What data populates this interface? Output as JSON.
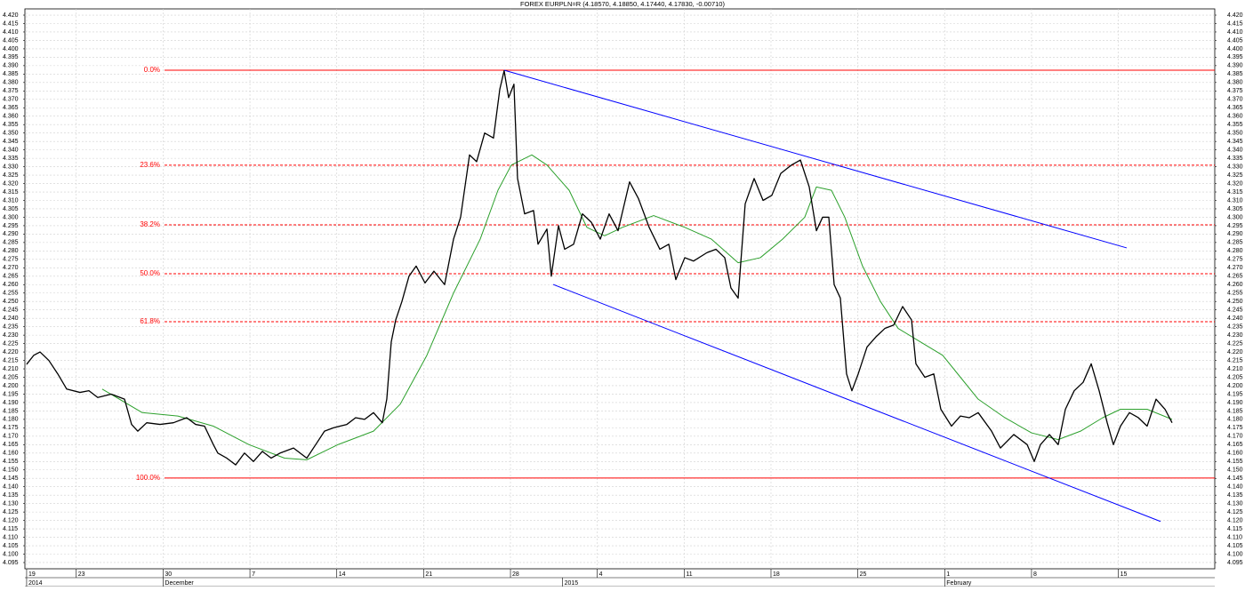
{
  "chart_data": {
    "type": "line",
    "title": "FOREX EURPLN=R (4.18570, 4.18850, 4.17440, 4.17830, -0.00710)",
    "xlim": [
      -0.14,
      95.77
    ],
    "ylim": [
      4.0913,
      4.4237
    ],
    "grid": true,
    "xticks": [
      {
        "value": 0,
        "label": "19"
      },
      {
        "value": 4,
        "label": "23"
      },
      {
        "value": 11,
        "label": "30"
      },
      {
        "value": 18,
        "label": "7"
      },
      {
        "value": 25,
        "label": "14"
      },
      {
        "value": 32,
        "label": "21"
      },
      {
        "value": 39,
        "label": "28"
      },
      {
        "value": 46,
        "label": "4"
      },
      {
        "value": 53,
        "label": "11"
      },
      {
        "value": 60,
        "label": "18"
      },
      {
        "value": 67,
        "label": "25"
      },
      {
        "value": 74,
        "label": "1"
      },
      {
        "value": 81,
        "label": "8"
      },
      {
        "value": 88,
        "label": "15"
      }
    ],
    "xticks_secondary": [
      {
        "value": 0,
        "label": "2014"
      },
      {
        "value": 11,
        "label": "December"
      },
      {
        "value": 43.2,
        "label": "2015"
      },
      {
        "value": 74,
        "label": "February"
      }
    ],
    "yticks": [
      {
        "value": 4.095,
        "label": "4.095"
      },
      {
        "value": 4.1,
        "label": "4.100"
      },
      {
        "value": 4.105,
        "label": "4.105"
      },
      {
        "value": 4.11,
        "label": "4.110"
      },
      {
        "value": 4.115,
        "label": "4.115"
      },
      {
        "value": 4.12,
        "label": "4.120"
      },
      {
        "value": 4.125,
        "label": "4.125"
      },
      {
        "value": 4.13,
        "label": "4.130"
      },
      {
        "value": 4.135,
        "label": "4.135"
      },
      {
        "value": 4.14,
        "label": "4.140"
      },
      {
        "value": 4.145,
        "label": "4.145"
      },
      {
        "value": 4.15,
        "label": "4.150"
      },
      {
        "value": 4.155,
        "label": "4.155"
      },
      {
        "value": 4.16,
        "label": "4.160"
      },
      {
        "value": 4.165,
        "label": "4.165"
      },
      {
        "value": 4.17,
        "label": "4.170"
      },
      {
        "value": 4.175,
        "label": "4.175"
      },
      {
        "value": 4.18,
        "label": "4.180"
      },
      {
        "value": 4.185,
        "label": "4.185"
      },
      {
        "value": 4.19,
        "label": "4.190"
      },
      {
        "value": 4.195,
        "label": "4.195"
      },
      {
        "value": 4.2,
        "label": "4.200"
      },
      {
        "value": 4.205,
        "label": "4.205"
      },
      {
        "value": 4.21,
        "label": "4.210"
      },
      {
        "value": 4.215,
        "label": "4.215"
      },
      {
        "value": 4.22,
        "label": "4.220"
      },
      {
        "value": 4.225,
        "label": "4.225"
      },
      {
        "value": 4.23,
        "label": "4.230"
      },
      {
        "value": 4.235,
        "label": "4.235"
      },
      {
        "value": 4.24,
        "label": "4.240"
      },
      {
        "value": 4.245,
        "label": "4.245"
      },
      {
        "value": 4.25,
        "label": "4.250"
      },
      {
        "value": 4.255,
        "label": "4.255"
      },
      {
        "value": 4.26,
        "label": "4.260"
      },
      {
        "value": 4.265,
        "label": "4.265"
      },
      {
        "value": 4.27,
        "label": "4.270"
      },
      {
        "value": 4.275,
        "label": "4.275"
      },
      {
        "value": 4.28,
        "label": "4.280"
      },
      {
        "value": 4.285,
        "label": "4.285"
      },
      {
        "value": 4.29,
        "label": "4.290"
      },
      {
        "value": 4.295,
        "label": "4.295"
      },
      {
        "value": 4.3,
        "label": "4.300"
      },
      {
        "value": 4.305,
        "label": "4.305"
      },
      {
        "value": 4.31,
        "label": "4.310"
      },
      {
        "value": 4.315,
        "label": "4.315"
      },
      {
        "value": 4.32,
        "label": "4.320"
      },
      {
        "value": 4.325,
        "label": "4.325"
      },
      {
        "value": 4.33,
        "label": "4.330"
      },
      {
        "value": 4.335,
        "label": "4.335"
      },
      {
        "value": 4.34,
        "label": "4.340"
      },
      {
        "value": 4.345,
        "label": "4.345"
      },
      {
        "value": 4.35,
        "label": "4.350"
      },
      {
        "value": 4.355,
        "label": "4.355"
      },
      {
        "value": 4.36,
        "label": "4.360"
      },
      {
        "value": 4.365,
        "label": "4.365"
      },
      {
        "value": 4.37,
        "label": "4.370"
      },
      {
        "value": 4.375,
        "label": "4.375"
      },
      {
        "value": 4.38,
        "label": "4.380"
      },
      {
        "value": 4.385,
        "label": "4.385"
      },
      {
        "value": 4.39,
        "label": "4.390"
      },
      {
        "value": 4.395,
        "label": "4.395"
      },
      {
        "value": 4.4,
        "label": "4.400"
      },
      {
        "value": 4.405,
        "label": "4.405"
      },
      {
        "value": 4.41,
        "label": "4.410"
      },
      {
        "value": 4.415,
        "label": "4.415"
      },
      {
        "value": 4.42,
        "label": "4.420"
      }
    ],
    "series": [
      {
        "color": "#000000",
        "x": [
          0,
          0.57,
          1.08,
          1.79,
          2.51,
          3.23,
          4.3,
          5.02,
          5.73,
          6.81,
          7.89,
          8.46,
          8.96,
          9.68,
          10.75,
          11.83,
          12.9,
          13.62,
          14.34,
          15.05,
          15.41,
          16.13,
          16.85,
          17.56,
          18.28,
          19.0,
          19.71,
          20.43,
          21.51,
          22.58,
          23.3,
          24.01,
          24.73,
          25.81,
          26.52,
          27.24,
          27.96,
          28.67,
          29.03,
          29.39,
          29.75,
          30.25,
          30.82,
          31.4,
          32.11,
          32.83,
          33.69,
          34.41,
          34.98,
          35.7,
          36.27,
          36.92,
          37.63,
          38.14,
          38.49,
          38.85,
          39.28,
          39.57,
          40.14,
          40.86,
          41.22,
          41.94,
          42.29,
          42.87,
          43.37,
          44.09,
          44.8,
          45.52,
          46.24,
          46.95,
          47.67,
          48.6,
          49.32,
          50.18,
          51.04,
          51.76,
          52.33,
          53.05,
          53.76,
          54.84,
          55.56,
          56.27,
          56.77,
          57.35,
          57.92,
          58.64,
          59.36,
          60.07,
          60.79,
          61.65,
          62.37,
          63.08,
          63.66,
          64.16,
          64.66,
          65.09,
          65.59,
          66.09,
          66.52,
          67.03,
          67.74,
          68.46,
          69.18,
          69.89,
          70.61,
          71.33,
          71.68,
          72.4,
          73.12,
          73.69,
          74.55,
          75.27,
          75.99,
          76.7,
          77.78,
          78.49,
          79.57,
          80.65,
          81.22,
          81.72,
          82.44,
          83.15,
          83.73,
          84.44,
          85.16,
          85.81,
          86.45,
          87.1,
          87.6,
          88.17,
          88.89,
          89.61,
          90.32,
          91.04,
          91.76,
          92.33
        ],
        "values": [
          4.2127,
          4.218,
          4.22,
          4.215,
          4.207,
          4.198,
          4.196,
          4.197,
          4.193,
          4.195,
          4.192,
          4.177,
          4.173,
          4.178,
          4.177,
          4.178,
          4.181,
          4.177,
          4.176,
          4.165,
          4.16,
          4.157,
          4.153,
          4.16,
          4.155,
          4.161,
          4.157,
          4.16,
          4.163,
          4.157,
          4.165,
          4.173,
          4.175,
          4.177,
          4.181,
          4.18,
          4.184,
          4.178,
          4.192,
          4.226,
          4.239,
          4.25,
          4.265,
          4.271,
          4.261,
          4.268,
          4.26,
          4.287,
          4.3,
          4.337,
          4.333,
          4.35,
          4.347,
          4.376,
          4.387,
          4.371,
          4.379,
          4.323,
          4.302,
          4.304,
          4.284,
          4.293,
          4.265,
          4.295,
          4.281,
          4.284,
          4.302,
          4.297,
          4.287,
          4.302,
          4.292,
          4.321,
          4.311,
          4.294,
          4.281,
          4.284,
          4.263,
          4.276,
          4.274,
          4.279,
          4.281,
          4.276,
          4.258,
          4.252,
          4.308,
          4.323,
          4.31,
          4.313,
          4.326,
          4.331,
          4.334,
          4.318,
          4.292,
          4.3,
          4.3,
          4.26,
          4.252,
          4.207,
          4.197,
          4.207,
          4.223,
          4.229,
          4.234,
          4.236,
          4.247,
          4.239,
          4.213,
          4.205,
          4.207,
          4.186,
          4.176,
          4.182,
          4.181,
          4.184,
          4.173,
          4.163,
          4.171,
          4.165,
          4.155,
          4.165,
          4.171,
          4.165,
          4.186,
          4.197,
          4.202,
          4.213,
          4.197,
          4.178,
          4.165,
          4.176,
          4.184,
          4.181,
          4.176,
          4.192,
          4.186,
          4.178
        ]
      },
      {
        "color": "#2ca02c",
        "x": [
          6.09,
          9.32,
          12.19,
          15.05,
          17.92,
          20.79,
          22.58,
          25.09,
          27.96,
          30.11,
          32.26,
          34.41,
          36.56,
          37.99,
          39.07,
          40.72,
          41.94,
          43.73,
          45.16,
          46.59,
          48.03,
          50.54,
          53.05,
          55.2,
          57.35,
          59.14,
          60.93,
          62.72,
          63.66,
          64.87,
          65.95,
          67.38,
          68.82,
          70.25,
          72.04,
          73.84,
          75.27,
          76.7,
          78.85,
          81.0,
          83.15,
          84.95,
          86.74,
          88.17,
          90.32,
          92.33
        ],
        "values": [
          4.198,
          4.184,
          4.182,
          4.176,
          4.165,
          4.157,
          4.156,
          4.165,
          4.173,
          4.189,
          4.218,
          4.255,
          4.287,
          4.316,
          4.331,
          4.337,
          4.331,
          4.316,
          4.294,
          4.289,
          4.294,
          4.301,
          4.294,
          4.287,
          4.273,
          4.276,
          4.287,
          4.3,
          4.318,
          4.316,
          4.3,
          4.271,
          4.25,
          4.234,
          4.226,
          4.218,
          4.205,
          4.192,
          4.181,
          4.172,
          4.168,
          4.173,
          4.181,
          4.186,
          4.186,
          4.18
        ]
      }
    ],
    "fibonacci_color": "#ff0000",
    "fibonacci": [
      {
        "label": "0.0%",
        "value": 4.3873,
        "dashed": false
      },
      {
        "label": "23.6%",
        "value": 4.3309,
        "dashed": true
      },
      {
        "label": "38.2%",
        "value": 4.2955,
        "dashed": true
      },
      {
        "label": "50.0%",
        "value": 4.2665,
        "dashed": true
      },
      {
        "label": "61.8%",
        "value": 4.238,
        "dashed": true
      },
      {
        "label": "100.0%",
        "value": 4.1452,
        "dashed": false
      }
    ],
    "trendline_color": "#0000ff",
    "trendlines": [
      {
        "x": [
          38.49,
          88.67
        ],
        "values": [
          4.3873,
          4.2818
        ]
      },
      {
        "x": [
          42.44,
          91.4
        ],
        "values": [
          4.2601,
          4.1194
        ]
      }
    ]
  }
}
